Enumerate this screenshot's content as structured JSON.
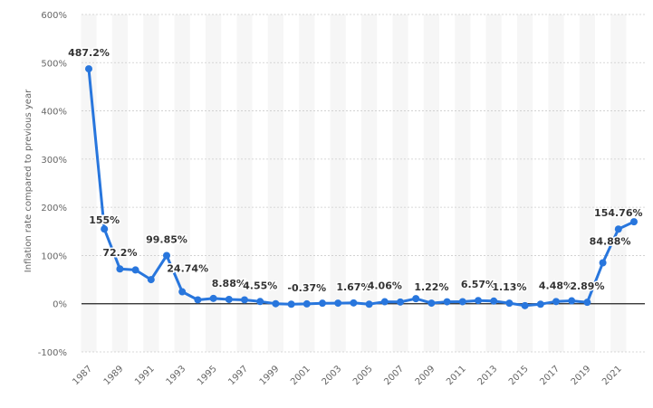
{
  "chart_data": {
    "type": "line",
    "title": "",
    "xlabel": "",
    "ylabel": "Inflation rate compared to previous year",
    "ylim": [
      -100,
      600
    ],
    "y_ticks": [
      -100,
      0,
      100,
      200,
      300,
      400,
      500,
      600
    ],
    "y_tick_labels": [
      "-100%",
      "0%",
      "100%",
      "200%",
      "300%",
      "400%",
      "500%",
      "600%"
    ],
    "x_tick_labels": [
      "1987",
      "1989",
      "1991",
      "1993",
      "1995",
      "1997",
      "1999",
      "2001",
      "2003",
      "2005",
      "2007",
      "2009",
      "2011",
      "2013",
      "2015",
      "2017",
      "2019",
      "2021"
    ],
    "grid": true,
    "line_color": "#2876dd",
    "x": [
      1987,
      1988,
      1989,
      1990,
      1991,
      1992,
      1993,
      1994,
      1995,
      1996,
      1997,
      1998,
      1999,
      2000,
      2001,
      2002,
      2003,
      2004,
      2005,
      2006,
      2007,
      2008,
      2009,
      2010,
      2011,
      2012,
      2013,
      2014,
      2015,
      2016,
      2017,
      2018,
      2019,
      2020,
      2021,
      2022
    ],
    "series": [
      {
        "name": "",
        "values": [
          487.2,
          155,
          72.2,
          70,
          50,
          99.85,
          24.74,
          8,
          11,
          8.88,
          8,
          4.55,
          0,
          -1,
          -0.37,
          1,
          1.2,
          1.67,
          -1,
          4.06,
          3.5,
          10.5,
          1.22,
          4,
          4.2,
          6.57,
          5.5,
          1.13,
          -4,
          -1,
          4.48,
          6,
          2.89,
          84.88,
          154.76,
          170
        ]
      }
    ],
    "data_labels": [
      {
        "year": 1987,
        "text": "487.2%"
      },
      {
        "year": 1988,
        "text": "155%"
      },
      {
        "year": 1989,
        "text": "72.2%"
      },
      {
        "year": 1992,
        "text": "99.85%"
      },
      {
        "year": 1993,
        "text": "24.74%"
      },
      {
        "year": 1996,
        "text": "8.88%"
      },
      {
        "year": 1998,
        "text": "4.55%"
      },
      {
        "year": 2001,
        "text": "-0.37%"
      },
      {
        "year": 2004,
        "text": "1.67%"
      },
      {
        "year": 2006,
        "text": "4.06%"
      },
      {
        "year": 2009,
        "text": "1.22%"
      },
      {
        "year": 2012,
        "text": "6.57%"
      },
      {
        "year": 2014,
        "text": "1.13%"
      },
      {
        "year": 2017,
        "text": "4.48%"
      },
      {
        "year": 2019,
        "text": "2.89%"
      },
      {
        "year": 2020,
        "text": "84.88%"
      },
      {
        "year": 2021,
        "text": "154.76%"
      }
    ]
  }
}
